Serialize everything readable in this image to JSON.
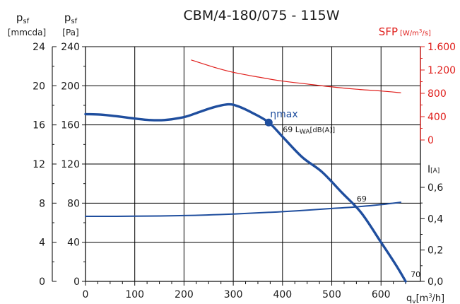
{
  "colors": {
    "main_curve": "#1f4e9e",
    "sfp_curve": "#e0201d",
    "axis": "#111111",
    "text": "#1a1a1a"
  },
  "chart_data": {
    "type": "line",
    "title": "CBM/4-180/075 - 115W",
    "xlabel": {
      "symbol": "q",
      "sub": "v",
      "unit_pre": "[m",
      "unit_sup": "3",
      "unit_post": "/h]"
    },
    "xlim": [
      0,
      680
    ],
    "xticks": [
      0,
      100,
      200,
      300,
      400,
      500,
      600
    ],
    "left_axis_pa": {
      "label": "p",
      "sub": "sf",
      "unit": "[Pa]",
      "lim": [
        0,
        240
      ],
      "ticks": [
        0,
        40,
        80,
        120,
        160,
        200,
        240
      ],
      "ticklabels": [
        "0",
        "40",
        "80",
        "120",
        "160",
        "200",
        "240"
      ]
    },
    "left_axis_mmcda": {
      "label": "p",
      "sub": "sf",
      "unit": "[mmcda]",
      "lim": [
        0,
        24
      ],
      "ticks": [
        0,
        4,
        8,
        12,
        16,
        20,
        24
      ],
      "ticklabels": [
        "0",
        "4",
        "8",
        "12",
        "16",
        "20",
        "24"
      ]
    },
    "right_axis_sfp": {
      "label": "SFP",
      "unit_pre": "[W/m",
      "unit_sup": "3",
      "unit_post": "/s]",
      "lim": [
        0,
        1600
      ],
      "ticks": [
        0,
        400,
        800,
        1200,
        1600
      ],
      "ticklabels": [
        "0",
        "400",
        "800",
        "1.200",
        "1.600"
      ]
    },
    "right_axis_current": {
      "label": "I",
      "unit": "[A]",
      "lim": [
        0,
        0.6
      ],
      "ticks": [
        0,
        0.2,
        0.4,
        0.6
      ],
      "ticklabels": [
        "0,0",
        "0,2",
        "0,4",
        "0,6"
      ]
    },
    "series": [
      {
        "axis": "pa",
        "x": [
          0,
          30,
          60,
          100,
          130,
          160,
          200,
          230,
          260,
          290,
          310,
          340,
          372,
          400,
          440,
          480,
          520,
          560,
          600,
          630,
          650
        ],
        "y": [
          171,
          170.5,
          169,
          166.5,
          165,
          165,
          168,
          173,
          178,
          181,
          179,
          172,
          162.5,
          148,
          127,
          112,
          91,
          70,
          40,
          17,
          0
        ]
      },
      {
        "axis": "current",
        "x": [
          0,
          100,
          200,
          300,
          400,
          500,
          560,
          600,
          640
        ],
        "y": [
          0.415,
          0.416,
          0.42,
          0.43,
          0.445,
          0.465,
          0.478,
          0.49,
          0.505
        ]
      },
      {
        "axis": "sfp",
        "x": [
          215,
          260,
          300,
          350,
          400,
          450,
          500,
          550,
          600,
          640
        ],
        "y": [
          1370,
          1250,
          1160,
          1080,
          1010,
          960,
          910,
          870,
          840,
          810
        ]
      }
    ],
    "marker": {
      "x": 372,
      "y_pa": 162.5,
      "label": "ηmax"
    },
    "annotations": [
      {
        "text": "69 L",
        "sub": "WA",
        "post": "[dB(A)]",
        "x": 372,
        "y_pa": 162.5
      },
      {
        "text": "69",
        "x": 545,
        "y_pa": 83
      },
      {
        "text": "70",
        "x": 650,
        "y_pa": 0
      }
    ]
  }
}
